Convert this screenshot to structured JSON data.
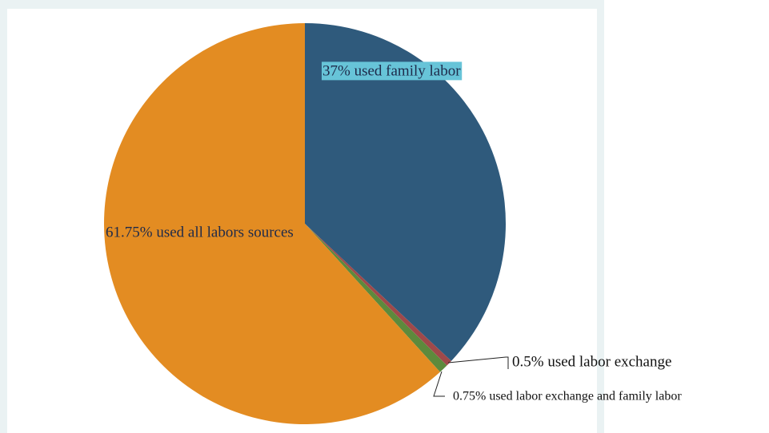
{
  "chart_data": {
    "type": "pie",
    "slices": [
      {
        "label": "37% used family labor",
        "value": 37,
        "color": "#2f5a7c"
      },
      {
        "label": "0.5% used labor exchange",
        "value": 0.5,
        "color": "#a0494a"
      },
      {
        "label": "0.75% used labor exchange and family labor",
        "value": 0.75,
        "color": "#5d8a3c"
      },
      {
        "label": "61.75% used all labors sources",
        "value": 61.75,
        "color": "#e38c22"
      }
    ],
    "label_bg_color": "#67c4d8",
    "label_text_color": "#1e2a4a",
    "start_angle": "12 o'clock",
    "direction": "clockwise",
    "legend": "none"
  }
}
